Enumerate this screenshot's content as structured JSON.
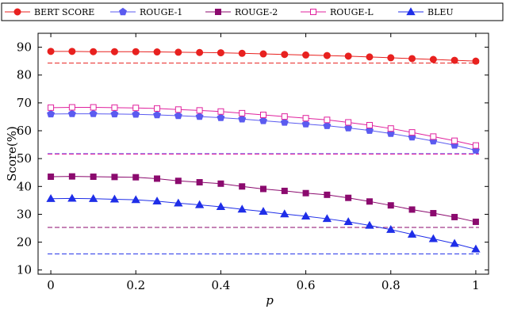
{
  "chart_data": {
    "type": "line",
    "title": "",
    "xlabel": "p",
    "ylabel": "Score(%)",
    "xlim": [
      -0.03,
      1.03
    ],
    "ylim": [
      8.5,
      95
    ],
    "xticks": [
      0,
      0.2,
      0.4,
      0.6,
      0.8,
      1
    ],
    "xtick_labels": [
      "0",
      "0.2",
      "0.4",
      "0.6",
      "0.8",
      "1"
    ],
    "yticks": [
      10,
      20,
      30,
      40,
      50,
      60,
      70,
      80,
      90
    ],
    "ytick_labels": [
      "10",
      "20",
      "30",
      "40",
      "50",
      "60",
      "70",
      "80",
      "90"
    ],
    "grid": false,
    "legend_position": "top",
    "x": [
      0,
      0.05,
      0.1,
      0.15,
      0.2,
      0.25,
      0.3,
      0.35,
      0.4,
      0.45,
      0.5,
      0.55,
      0.6,
      0.65,
      0.7,
      0.75,
      0.8,
      0.85,
      0.9,
      0.95,
      1.0
    ],
    "series": [
      {
        "name": "BERT SCORE",
        "color": "#e8211f",
        "marker": "circle",
        "values": [
          88.5,
          88.5,
          88.4,
          88.4,
          88.4,
          88.3,
          88.2,
          88.1,
          88.0,
          87.8,
          87.6,
          87.4,
          87.2,
          87.0,
          86.8,
          86.5,
          86.2,
          85.9,
          85.6,
          85.3,
          85.0
        ],
        "baseline": 84.3
      },
      {
        "name": "ROUGE-1",
        "color": "#5b5bf0",
        "marker": "pentagon",
        "values": [
          66.0,
          66.1,
          66.1,
          66.0,
          65.9,
          65.7,
          65.4,
          65.1,
          64.7,
          64.2,
          63.6,
          63.0,
          62.4,
          61.8,
          61.0,
          60.1,
          59.0,
          57.7,
          56.3,
          54.8,
          53.0
        ],
        "baseline": 51.8
      },
      {
        "name": "ROUGE-2",
        "color": "#8b0a6e",
        "marker": "square",
        "values": [
          43.5,
          43.6,
          43.5,
          43.4,
          43.3,
          42.8,
          42.0,
          41.5,
          41.0,
          40.0,
          39.1,
          38.4,
          37.6,
          37.0,
          35.9,
          34.6,
          33.2,
          31.7,
          30.4,
          29.0,
          27.3
        ],
        "baseline": 25.3
      },
      {
        "name": "ROUGE-L",
        "color": "#e0229e",
        "marker": "square-open",
        "values": [
          68.3,
          68.4,
          68.4,
          68.3,
          68.2,
          68.0,
          67.6,
          67.3,
          66.9,
          66.3,
          65.7,
          65.1,
          64.5,
          63.9,
          63.0,
          62.0,
          60.8,
          59.4,
          57.9,
          56.4,
          54.7
        ],
        "baseline": 51.6
      },
      {
        "name": "BLEU",
        "color": "#1f2ee8",
        "marker": "triangle",
        "values": [
          35.6,
          35.7,
          35.6,
          35.4,
          35.2,
          34.7,
          34.0,
          33.4,
          32.7,
          31.8,
          31.0,
          30.1,
          29.3,
          28.4,
          27.3,
          26.0,
          24.5,
          22.8,
          21.2,
          19.5,
          17.5
        ],
        "baseline": 15.8
      }
    ]
  }
}
